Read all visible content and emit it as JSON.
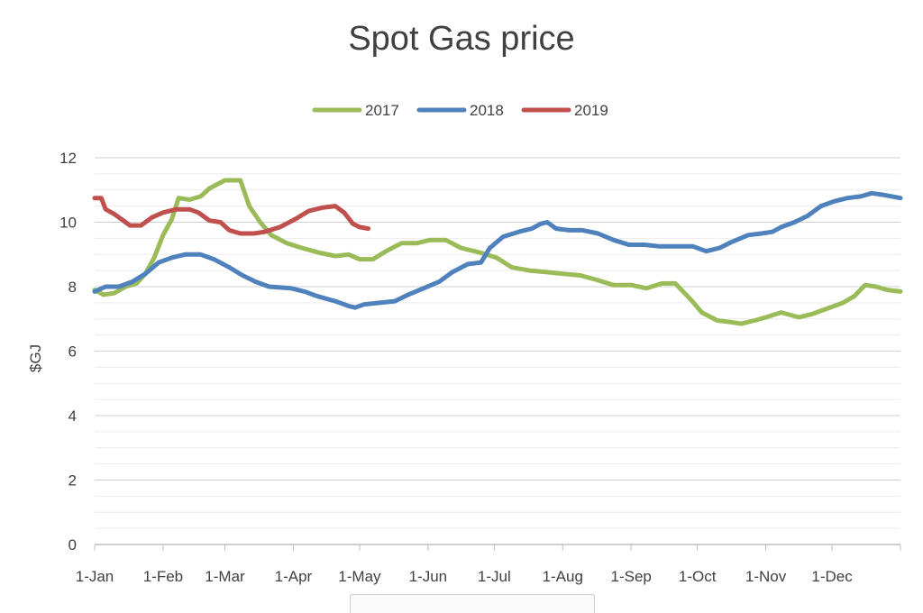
{
  "chart_data": {
    "type": "line",
    "title": "Spot Gas price",
    "xlabel": "",
    "ylabel": "$GJ",
    "ylim": [
      0,
      12
    ],
    "yticks": [
      "0",
      "2",
      "4",
      "6",
      "8",
      "10",
      "12"
    ],
    "grid": true,
    "legend_position": "top",
    "x_tick_labels": [
      "1-Jan",
      "1-Feb",
      "1-Mar",
      "1-Apr",
      "1-May",
      "1-Jun",
      "1-Jul",
      "1-Aug",
      "1-Sep",
      "1-Oct",
      "1-Nov",
      "1-Dec"
    ],
    "x_tick_days": [
      1,
      32,
      60,
      91,
      121,
      152,
      182,
      213,
      244,
      274,
      305,
      335
    ],
    "x_range_days": [
      1,
      366
    ],
    "series": [
      {
        "name": "2017",
        "color": "#9BBB59",
        "points": [
          [
            1,
            7.9
          ],
          [
            5,
            7.75
          ],
          [
            10,
            7.8
          ],
          [
            15,
            8.0
          ],
          [
            20,
            8.1
          ],
          [
            24,
            8.4
          ],
          [
            28,
            8.9
          ],
          [
            32,
            9.6
          ],
          [
            36,
            10.1
          ],
          [
            39,
            10.75
          ],
          [
            44,
            10.7
          ],
          [
            49,
            10.8
          ],
          [
            53,
            11.05
          ],
          [
            60,
            11.3
          ],
          [
            67,
            11.3
          ],
          [
            71,
            10.5
          ],
          [
            76,
            10.0
          ],
          [
            81,
            9.6
          ],
          [
            88,
            9.35
          ],
          [
            95,
            9.2
          ],
          [
            103,
            9.05
          ],
          [
            110,
            8.95
          ],
          [
            116,
            9.0
          ],
          [
            121,
            8.85
          ],
          [
            127,
            8.85
          ],
          [
            133,
            9.1
          ],
          [
            140,
            9.35
          ],
          [
            147,
            9.35
          ],
          [
            153,
            9.45
          ],
          [
            160,
            9.45
          ],
          [
            167,
            9.2
          ],
          [
            176,
            9.05
          ],
          [
            183,
            8.9
          ],
          [
            190,
            8.6
          ],
          [
            198,
            8.5
          ],
          [
            206,
            8.45
          ],
          [
            213,
            8.4
          ],
          [
            221,
            8.35
          ],
          [
            229,
            8.2
          ],
          [
            236,
            8.05
          ],
          [
            244,
            8.05
          ],
          [
            251,
            7.95
          ],
          [
            258,
            8.1
          ],
          [
            264,
            8.1
          ],
          [
            271,
            7.6
          ],
          [
            276,
            7.2
          ],
          [
            283,
            6.95
          ],
          [
            289,
            6.9
          ],
          [
            294,
            6.85
          ],
          [
            300,
            6.95
          ],
          [
            305,
            7.05
          ],
          [
            312,
            7.2
          ],
          [
            320,
            7.05
          ],
          [
            326,
            7.15
          ],
          [
            332,
            7.3
          ],
          [
            340,
            7.5
          ],
          [
            345,
            7.7
          ],
          [
            350,
            8.05
          ],
          [
            355,
            8.0
          ],
          [
            360,
            7.9
          ],
          [
            366,
            7.85
          ]
        ]
      },
      {
        "name": "2018",
        "color": "#4F81BD",
        "points": [
          [
            1,
            7.85
          ],
          [
            6,
            8.0
          ],
          [
            12,
            8.0
          ],
          [
            18,
            8.15
          ],
          [
            24,
            8.4
          ],
          [
            30,
            8.75
          ],
          [
            36,
            8.9
          ],
          [
            42,
            9.0
          ],
          [
            49,
            9.0
          ],
          [
            55,
            8.85
          ],
          [
            62,
            8.6
          ],
          [
            68,
            8.35
          ],
          [
            74,
            8.15
          ],
          [
            80,
            8.0
          ],
          [
            90,
            7.95
          ],
          [
            96,
            7.85
          ],
          [
            102,
            7.7
          ],
          [
            110,
            7.55
          ],
          [
            116,
            7.4
          ],
          [
            119,
            7.35
          ],
          [
            123,
            7.45
          ],
          [
            130,
            7.5
          ],
          [
            137,
            7.55
          ],
          [
            143,
            7.75
          ],
          [
            150,
            7.95
          ],
          [
            157,
            8.15
          ],
          [
            163,
            8.45
          ],
          [
            170,
            8.7
          ],
          [
            176,
            8.75
          ],
          [
            180,
            9.2
          ],
          [
            186,
            9.55
          ],
          [
            193,
            9.7
          ],
          [
            199,
            9.8
          ],
          [
            203,
            9.95
          ],
          [
            206,
            10.0
          ],
          [
            210,
            9.8
          ],
          [
            216,
            9.75
          ],
          [
            222,
            9.75
          ],
          [
            229,
            9.65
          ],
          [
            236,
            9.45
          ],
          [
            243,
            9.3
          ],
          [
            250,
            9.3
          ],
          [
            257,
            9.25
          ],
          [
            265,
            9.25
          ],
          [
            272,
            9.25
          ],
          [
            278,
            9.1
          ],
          [
            284,
            9.2
          ],
          [
            290,
            9.4
          ],
          [
            297,
            9.6
          ],
          [
            303,
            9.65
          ],
          [
            308,
            9.7
          ],
          [
            312,
            9.85
          ],
          [
            318,
            10.0
          ],
          [
            324,
            10.2
          ],
          [
            330,
            10.5
          ],
          [
            336,
            10.65
          ],
          [
            342,
            10.75
          ],
          [
            348,
            10.8
          ],
          [
            353,
            10.9
          ],
          [
            358,
            10.85
          ],
          [
            366,
            10.75
          ]
        ]
      },
      {
        "name": "2019",
        "color": "#C0504D",
        "points": [
          [
            1,
            10.75
          ],
          [
            4,
            10.75
          ],
          [
            6,
            10.4
          ],
          [
            10,
            10.25
          ],
          [
            14,
            10.05
          ],
          [
            17,
            9.9
          ],
          [
            22,
            9.9
          ],
          [
            27,
            10.15
          ],
          [
            32,
            10.3
          ],
          [
            38,
            10.4
          ],
          [
            44,
            10.4
          ],
          [
            48,
            10.3
          ],
          [
            53,
            10.05
          ],
          [
            58,
            10.0
          ],
          [
            62,
            9.75
          ],
          [
            67,
            9.65
          ],
          [
            73,
            9.65
          ],
          [
            78,
            9.7
          ],
          [
            85,
            9.85
          ],
          [
            92,
            10.1
          ],
          [
            98,
            10.35
          ],
          [
            104,
            10.45
          ],
          [
            110,
            10.5
          ],
          [
            114,
            10.3
          ],
          [
            118,
            9.95
          ],
          [
            121,
            9.85
          ],
          [
            125,
            9.8
          ]
        ]
      }
    ]
  }
}
